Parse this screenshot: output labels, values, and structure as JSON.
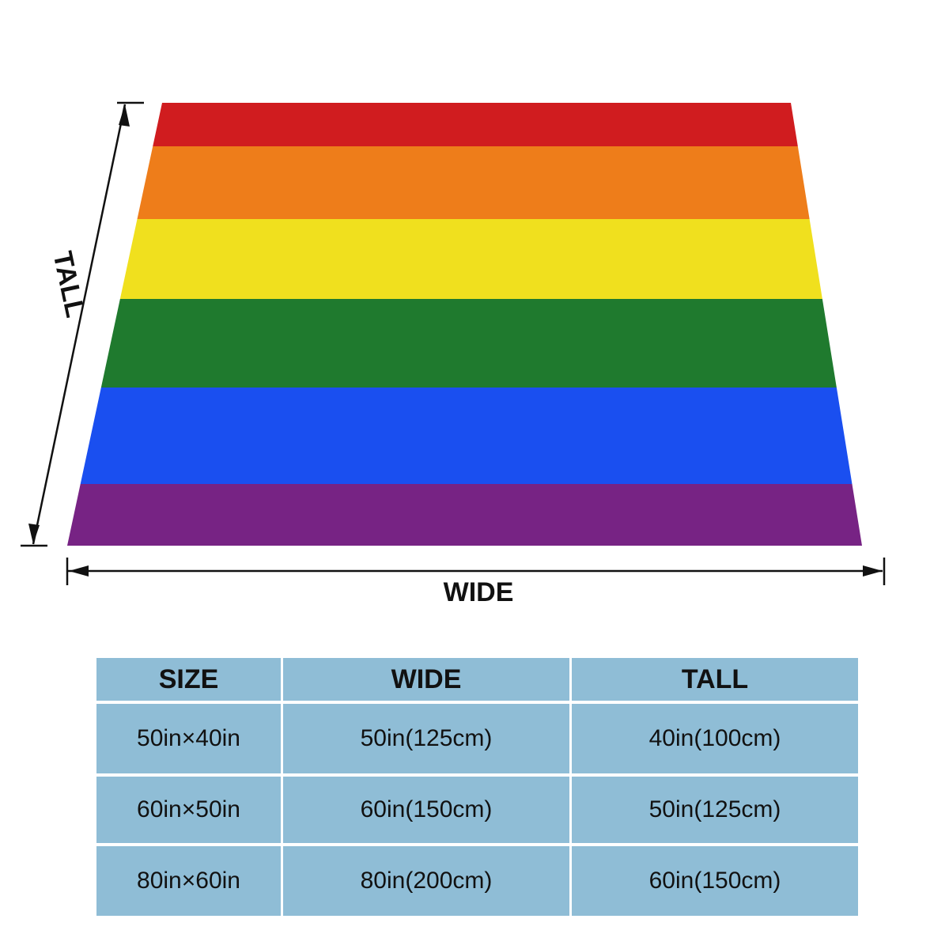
{
  "dimensions": {
    "tall": "TALL",
    "wide": "WIDE"
  },
  "table": {
    "header": [
      "SIZE",
      "WIDE",
      "TALL"
    ],
    "rows": [
      [
        "50in×40in",
        "50in(125cm)",
        "40in(100cm)"
      ],
      [
        "60in×50in",
        "60in(150cm)",
        "50in(125cm)"
      ],
      [
        "80in×60in",
        "80in(200cm)",
        "60in(150cm)"
      ]
    ]
  }
}
